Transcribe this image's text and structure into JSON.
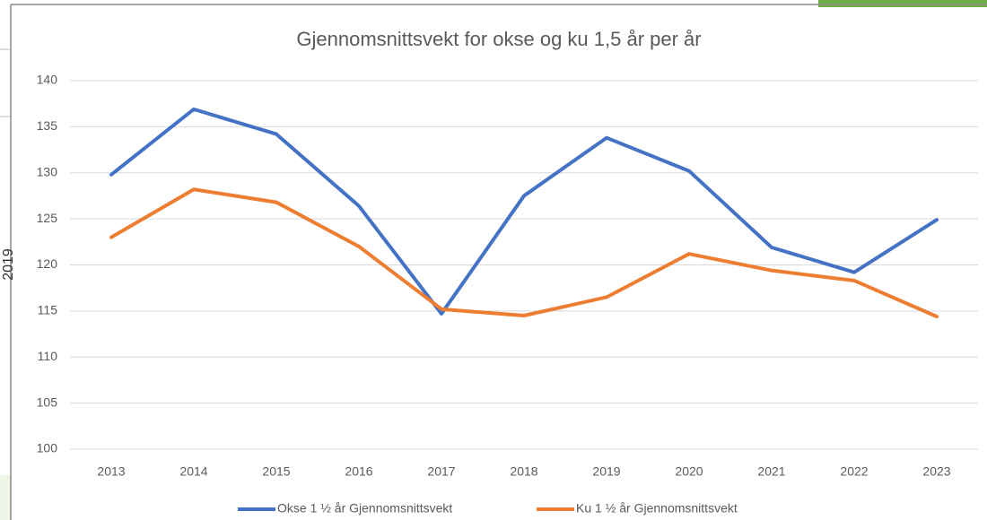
{
  "side_text": "2019",
  "chart_data": {
    "type": "line",
    "title": "Gjennomsnittsvekt for okse og ku 1,5 år per år",
    "categories": [
      "2013",
      "2014",
      "2015",
      "2016",
      "2017",
      "2018",
      "2019",
      "2020",
      "2021",
      "2022",
      "2023"
    ],
    "series": [
      {
        "name": "Okse 1 ½ år Gjennomsnittsvekt",
        "color": "#4472c4",
        "values": [
          129.8,
          136.9,
          134.2,
          126.4,
          114.7,
          127.5,
          133.8,
          130.2,
          121.9,
          119.2,
          124.9
        ]
      },
      {
        "name": "Ku 1 ½ år Gjennomsnittsvekt",
        "color": "#ed7d31",
        "values": [
          123.0,
          128.2,
          126.8,
          122.0,
          115.2,
          114.5,
          116.5,
          121.2,
          119.4,
          118.3,
          114.4
        ]
      }
    ],
    "ylim": [
      100,
      140
    ],
    "yticks": [
      100,
      105,
      110,
      115,
      120,
      125,
      130,
      135,
      140
    ],
    "grid": true,
    "legend": "bottom"
  }
}
